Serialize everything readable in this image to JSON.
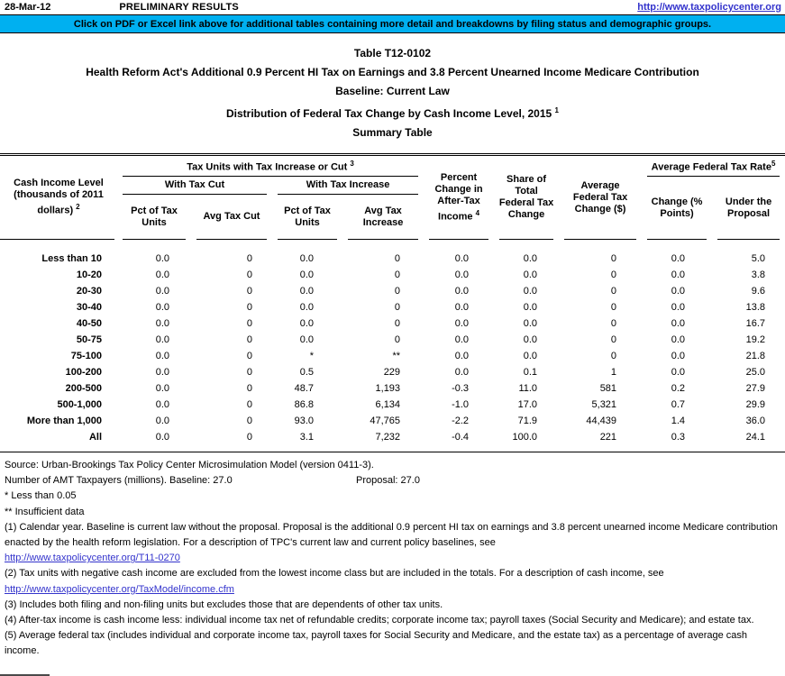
{
  "topbar": {
    "date": "28-Mar-12",
    "status": "PRELIMINARY RESULTS",
    "link": "http://www.taxpolicycenter.org"
  },
  "banner": {
    "text": "Click on PDF or Excel link above for additional tables containing more detail and breakdowns by filing status and demographic groups.",
    "bg_color": "#00B0F0"
  },
  "titles": {
    "table_number": "Table T12-0102",
    "main": "Health Reform Act's Additional 0.9 Percent HI Tax on Earnings and 3.8 Percent Unearned Income Medicare Contribution",
    "baseline": "Baseline: Current Law",
    "distribution": {
      "text": "Distribution of Federal Tax Change by Cash Income Level, 2015",
      "sup": "1"
    },
    "summary": "Summary Table"
  },
  "table": {
    "header": {
      "cash_income": {
        "text": "Cash Income Level (thousands of 2011 dollars)",
        "sup": "2"
      },
      "tax_units_group": {
        "text": "Tax Units with Tax Increase or Cut",
        "sup": "3"
      },
      "with_tax_cut": "With Tax Cut",
      "with_tax_increase": "With Tax Increase",
      "pct_units_cut": "Pct of Tax Units",
      "avg_tax_cut": "Avg Tax Cut",
      "pct_units_increase": "Pct of Tax Units",
      "avg_tax_increase": "Avg Tax Increase",
      "pct_change_ati": {
        "text": "Percent Change in After-Tax Income",
        "sup": "4"
      },
      "share_total": "Share of Total Federal Tax Change",
      "avg_fed_change": "Average Federal Tax Change ($)",
      "avg_fed_rate_group": {
        "text": "Average Federal Tax Rate",
        "sup": "5"
      },
      "rate_change": "Change (% Points)",
      "rate_under": "Under the Proposal"
    },
    "rows": [
      [
        "Less than 10",
        "0.0",
        "0",
        "0.0",
        "0",
        "0.0",
        "0.0",
        "0",
        "0.0",
        "5.0"
      ],
      [
        "10-20",
        "0.0",
        "0",
        "0.0",
        "0",
        "0.0",
        "0.0",
        "0",
        "0.0",
        "3.8"
      ],
      [
        "20-30",
        "0.0",
        "0",
        "0.0",
        "0",
        "0.0",
        "0.0",
        "0",
        "0.0",
        "9.6"
      ],
      [
        "30-40",
        "0.0",
        "0",
        "0.0",
        "0",
        "0.0",
        "0.0",
        "0",
        "0.0",
        "13.8"
      ],
      [
        "40-50",
        "0.0",
        "0",
        "0.0",
        "0",
        "0.0",
        "0.0",
        "0",
        "0.0",
        "16.7"
      ],
      [
        "50-75",
        "0.0",
        "0",
        "0.0",
        "0",
        "0.0",
        "0.0",
        "0",
        "0.0",
        "19.2"
      ],
      [
        "75-100",
        "0.0",
        "0",
        "*",
        "**",
        "0.0",
        "0.0",
        "0",
        "0.0",
        "21.8"
      ],
      [
        "100-200",
        "0.0",
        "0",
        "0.5",
        "229",
        "0.0",
        "0.1",
        "1",
        "0.0",
        "25.0"
      ],
      [
        "200-500",
        "0.0",
        "0",
        "48.7",
        "1,193",
        "-0.3",
        "11.0",
        "581",
        "0.2",
        "27.9"
      ],
      [
        "500-1,000",
        "0.0",
        "0",
        "86.8",
        "6,134",
        "-1.0",
        "17.0",
        "5,321",
        "0.7",
        "29.9"
      ],
      [
        "More than 1,000",
        "0.0",
        "0",
        "93.0",
        "47,765",
        "-2.2",
        "71.9",
        "44,439",
        "1.4",
        "36.0"
      ],
      [
        "All",
        "0.0",
        "0",
        "3.1",
        "7,232",
        "-0.4",
        "100.0",
        "221",
        "0.3",
        "24.1"
      ]
    ]
  },
  "notes": {
    "source": "Source: Urban-Brookings Tax Policy Center Microsimulation Model (version 0411-3).",
    "amt_label": "Number of AMT Taxpayers (millions).  Baseline: 27.0",
    "amt_proposal": "Proposal: 27.0",
    "star": "* Less than 0.05",
    "doublestar": "** Insufficient data",
    "note1": "(1) Calendar year. Baseline is current law without the proposal. Proposal is the additional 0.9 percent HI tax on earnings and 3.8 percent unearned income Medicare contribution enacted by the health reform legislation. For a description of TPC's current law and current policy baselines, see",
    "link1": "http://www.taxpolicycenter.org/T11-0270",
    "note2": "(2) Tax units with negative cash income are excluded from the lowest income class but are included in the totals. For a description of cash income, see",
    "link2": "http://www.taxpolicycenter.org/TaxModel/income.cfm",
    "note3": "(3) Includes both filing and non-filing units but excludes those that are dependents of other tax units.",
    "note4": "(4) After-tax income is cash income less: individual income tax net of refundable credits; corporate income tax; payroll taxes (Social Security and Medicare); and estate tax.",
    "note5": "(5) Average federal tax (includes individual and corporate income tax, payroll taxes for Social Security and Medicare, and the estate tax) as a percentage of average cash income."
  },
  "colors": {
    "banner_bg": "#00B0F0",
    "link": "#3333CC"
  }
}
